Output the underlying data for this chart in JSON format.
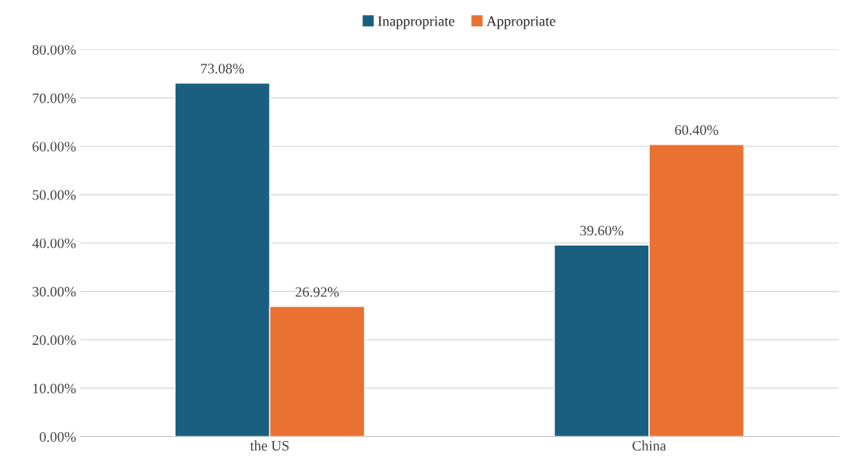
{
  "chart_data": {
    "type": "bar",
    "categories": [
      "the US",
      "China"
    ],
    "series": [
      {
        "name": "Inappropriate",
        "color": "#1a5f80",
        "values": [
          73.08,
          39.6
        ],
        "value_labels": [
          "73.08%",
          "39.60%"
        ]
      },
      {
        "name": "Appropriate",
        "color": "#e97132",
        "values": [
          26.92,
          60.4
        ],
        "value_labels": [
          "26.92%",
          "60.40%"
        ]
      }
    ],
    "ylim": [
      0,
      80
    ],
    "yticks": [
      {
        "value": 0,
        "label": "0.00%"
      },
      {
        "value": 10,
        "label": "10.00%"
      },
      {
        "value": 20,
        "label": "20.00%"
      },
      {
        "value": 30,
        "label": "30.00%"
      },
      {
        "value": 40,
        "label": "40.00%"
      },
      {
        "value": 50,
        "label": "50.00%"
      },
      {
        "value": 60,
        "label": "60.00%"
      },
      {
        "value": 70,
        "label": "70.00%"
      },
      {
        "value": 80,
        "label": "80.00%"
      }
    ],
    "grid": "y",
    "legend": "top"
  }
}
